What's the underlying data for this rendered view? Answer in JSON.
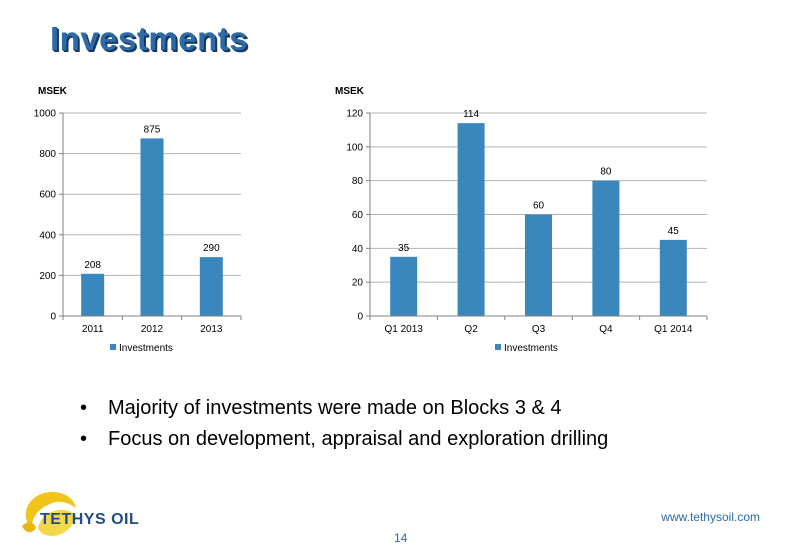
{
  "slide": {
    "title": "Investments",
    "bullets": [
      "Majority of investments were made on Blocks 3 & 4",
      "Focus on development, appraisal and exploration drilling"
    ],
    "company_name": "TETHYS OIL",
    "website": "www.tethysoil.com",
    "page_number": "14"
  },
  "colors": {
    "bar": "#3a87bd",
    "title": "#2e6aa6",
    "grid": "#b3b3b3",
    "logo_gold": "#f0c419"
  },
  "chart_data": [
    {
      "type": "bar",
      "unit_label": "MSEK",
      "categories": [
        "2011",
        "2012",
        "2013"
      ],
      "series": [
        {
          "name": "Investments",
          "values": [
            208,
            875,
            290
          ]
        }
      ],
      "data_labels": [
        "208",
        "875",
        "290"
      ],
      "y_ticks": [
        "0",
        "200",
        "400",
        "600",
        "800",
        "1000"
      ],
      "ylim": [
        0,
        1000
      ],
      "grid": true,
      "legend_position": "bottom"
    },
    {
      "type": "bar",
      "unit_label": "MSEK",
      "categories": [
        "Q1 2013",
        "Q2",
        "Q3",
        "Q4",
        "Q1 2014"
      ],
      "series": [
        {
          "name": "Investments",
          "values": [
            35,
            114,
            60,
            80,
            45
          ]
        }
      ],
      "data_labels": [
        "35",
        "114",
        "60",
        "80",
        "45"
      ],
      "y_ticks": [
        "0",
        "20",
        "40",
        "60",
        "80",
        "100",
        "120"
      ],
      "ylim": [
        0,
        120
      ],
      "grid": true,
      "legend_position": "bottom"
    }
  ]
}
